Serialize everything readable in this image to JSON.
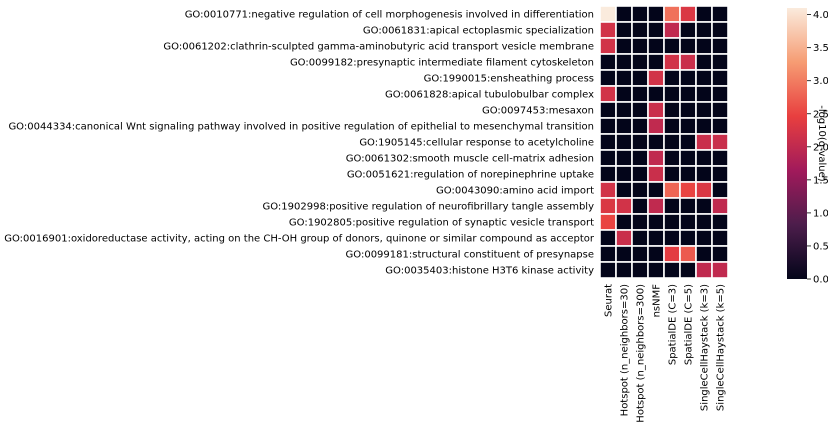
{
  "chart_data": {
    "type": "heatmap",
    "title": "",
    "rows": [
      "GO:0010771:negative regulation of cell morphogenesis involved in differentiation",
      "GO:0061831:apical ectoplasmic specialization",
      "GO:0061202:clathrin-sculpted gamma-aminobutyric acid transport vesicle membrane",
      "GO:0099182:presynaptic intermediate filament cytoskeleton",
      "GO:1990015:ensheathing process",
      "GO:0061828:apical tubulobulbar complex",
      "GO:0097453:mesaxon",
      "GO:0044334:canonical Wnt signaling pathway involved in positive regulation of epithelial to mesenchymal transition",
      "GO:1905145:cellular response to acetylcholine",
      "GO:0061302:smooth muscle cell-matrix adhesion",
      "GO:0051621:regulation of norepinephrine uptake",
      "GO:0043090:amino acid import",
      "GO:1902998:positive regulation of neurofibrillary tangle assembly",
      "GO:1902805:positive regulation of synaptic vesicle transport",
      "GO:0016901:oxidoreductase activity, acting on the CH-OH group of donors, quinone or similar compound as acceptor",
      "GO:0099181:structural constituent of presynapse",
      "GO:0035403:histone H3T6 kinase activity"
    ],
    "columns": [
      "Seurat",
      "Hotspot (n_neighbors=30)",
      "Hotspot (n_neighbors=300)",
      "nsNMF",
      "SpatialDE (C=3)",
      "SpatialDE (C=5)",
      "SingleCellHaystack (k=3)",
      "SingleCellHaystack (k=5)"
    ],
    "values": [
      [
        4.1,
        0,
        0,
        0,
        2.9,
        2.3,
        0,
        0
      ],
      [
        2.2,
        0,
        0,
        0,
        2.0,
        0,
        0,
        0
      ],
      [
        2.2,
        0,
        0,
        0,
        0,
        0,
        0,
        0
      ],
      [
        0,
        0,
        0,
        0,
        2.2,
        2.1,
        0,
        0
      ],
      [
        0,
        0,
        0,
        2.2,
        0,
        0,
        0,
        0
      ],
      [
        2.2,
        0,
        0,
        0,
        0,
        0,
        0,
        0
      ],
      [
        0,
        0,
        0,
        2.1,
        0,
        0,
        0,
        0
      ],
      [
        0,
        0,
        0,
        2.0,
        0,
        0,
        0,
        0
      ],
      [
        0,
        0,
        0,
        0,
        0,
        0,
        2.1,
        2.1
      ],
      [
        0,
        0,
        0,
        2.0,
        0,
        0,
        0,
        0
      ],
      [
        0,
        0,
        0,
        2.1,
        0,
        0,
        0,
        0
      ],
      [
        2.2,
        0,
        0,
        0,
        2.8,
        2.5,
        2.3,
        0
      ],
      [
        2.3,
        2.2,
        0,
        2.0,
        0,
        0,
        0,
        2.0
      ],
      [
        2.5,
        0,
        0,
        0,
        0,
        0,
        0,
        0
      ],
      [
        0,
        2.1,
        0,
        0,
        0,
        0,
        0,
        0
      ],
      [
        0,
        0,
        0,
        0,
        2.4,
        2.7,
        0,
        0
      ],
      [
        0,
        0,
        0,
        0,
        0,
        0,
        2.0,
        2.0
      ]
    ],
    "colorbar": {
      "label": "-log10(q-value)",
      "ticks": [
        0.0,
        0.5,
        1.0,
        1.5,
        2.0,
        2.5,
        3.0,
        3.5,
        4.0
      ],
      "tick_labels": [
        "0.0",
        "0.5",
        "1.0",
        "1.5",
        "2.0",
        "2.5",
        "3.0",
        "3.5",
        "4.0"
      ],
      "vmin": 0,
      "vmax": 4.1,
      "colormap": "rocket",
      "colors": [
        "#03051a",
        "#4c1d4b",
        "#a11a5b",
        "#e83f3f",
        "#f69c73",
        "#faebdd"
      ]
    },
    "cell_border_color": "#ffffff",
    "grid": false
  }
}
